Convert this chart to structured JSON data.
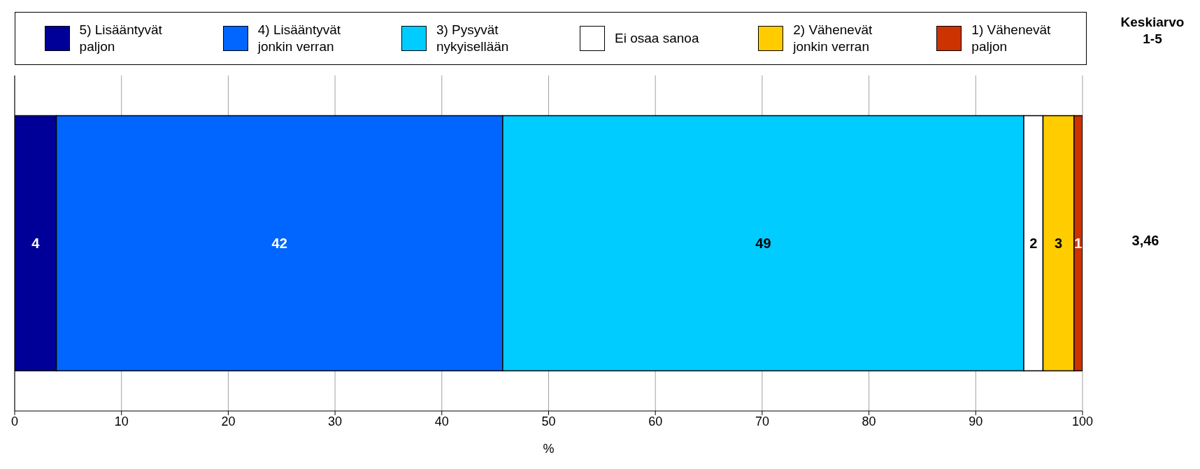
{
  "chart_data": {
    "type": "bar",
    "orientation": "horizontal",
    "stacked": true,
    "categories": [
      null
    ],
    "series": [
      {
        "name": "5) Lisääntyvät paljon",
        "color": "#000099",
        "values": [
          3.9
        ],
        "value_labels": [
          "4"
        ]
      },
      {
        "name": "4) Lisääntyvät jonkin verran",
        "color": "#0066ff",
        "values": [
          41.8
        ],
        "value_labels": [
          "42"
        ]
      },
      {
        "name": "3) Pysyvät nykyisellään",
        "color": "#00ccff",
        "values": [
          48.8
        ],
        "value_labels": [
          "49"
        ]
      },
      {
        "name": "Ei osaa sanoa",
        "color": "#ffffff",
        "values": [
          1.8
        ],
        "value_labels": [
          "2"
        ]
      },
      {
        "name": "2) Vähenevät jonkin verran",
        "color": "#ffcc00",
        "values": [
          2.9
        ],
        "value_labels": [
          "3"
        ]
      },
      {
        "name": "1) Vähenevät paljon",
        "color": "#cc3300",
        "values": [
          0.8
        ],
        "value_labels": [
          "1"
        ]
      }
    ],
    "xlabel": "%",
    "xlim": [
      0,
      100
    ],
    "xticks": [
      0,
      10,
      20,
      30,
      40,
      50,
      60,
      70,
      80,
      90,
      100
    ],
    "grid": "x",
    "legend": "top",
    "annotations": [
      "Keskiarvo 1-5",
      "3,46"
    ]
  }
}
